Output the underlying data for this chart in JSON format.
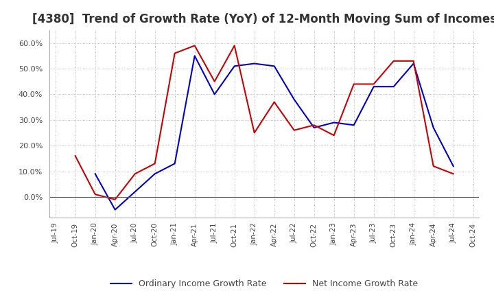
{
  "title": "[4380]  Trend of Growth Rate (YoY) of 12-Month Moving Sum of Incomes",
  "title_fontsize": 12,
  "x_labels": [
    "Jul-19",
    "Oct-19",
    "Jan-20",
    "Apr-20",
    "Jul-20",
    "Oct-20",
    "Jan-21",
    "Apr-21",
    "Jul-21",
    "Oct-21",
    "Jan-22",
    "Apr-22",
    "Jul-22",
    "Oct-22",
    "Jan-23",
    "Apr-23",
    "Jul-23",
    "Oct-23",
    "Jan-24",
    "Apr-24",
    "Jul-24",
    "Oct-24"
  ],
  "ordinary_income": [
    null,
    null,
    9.0,
    -5.0,
    2.0,
    9.0,
    13.0,
    55.0,
    40.0,
    51.0,
    52.0,
    51.0,
    38.0,
    27.0,
    29.0,
    28.0,
    43.0,
    43.0,
    52.0,
    27.0,
    12.0,
    null
  ],
  "net_income": [
    null,
    16.0,
    1.0,
    -1.0,
    9.0,
    13.0,
    56.0,
    59.0,
    45.0,
    59.0,
    25.0,
    37.0,
    26.0,
    28.0,
    24.0,
    44.0,
    44.0,
    53.0,
    53.0,
    12.0,
    9.0,
    null
  ],
  "ordinary_color": "#0000cc",
  "net_color": "#cc0000",
  "ylim": [
    -8,
    65
  ],
  "yticks": [
    0.0,
    10.0,
    20.0,
    30.0,
    40.0,
    50.0,
    60.0
  ],
  "grid_color": "#aaaaaa",
  "background_color": "#ffffff",
  "legend_ordinary": "Ordinary Income Growth Rate",
  "legend_net": "Net Income Growth Rate"
}
